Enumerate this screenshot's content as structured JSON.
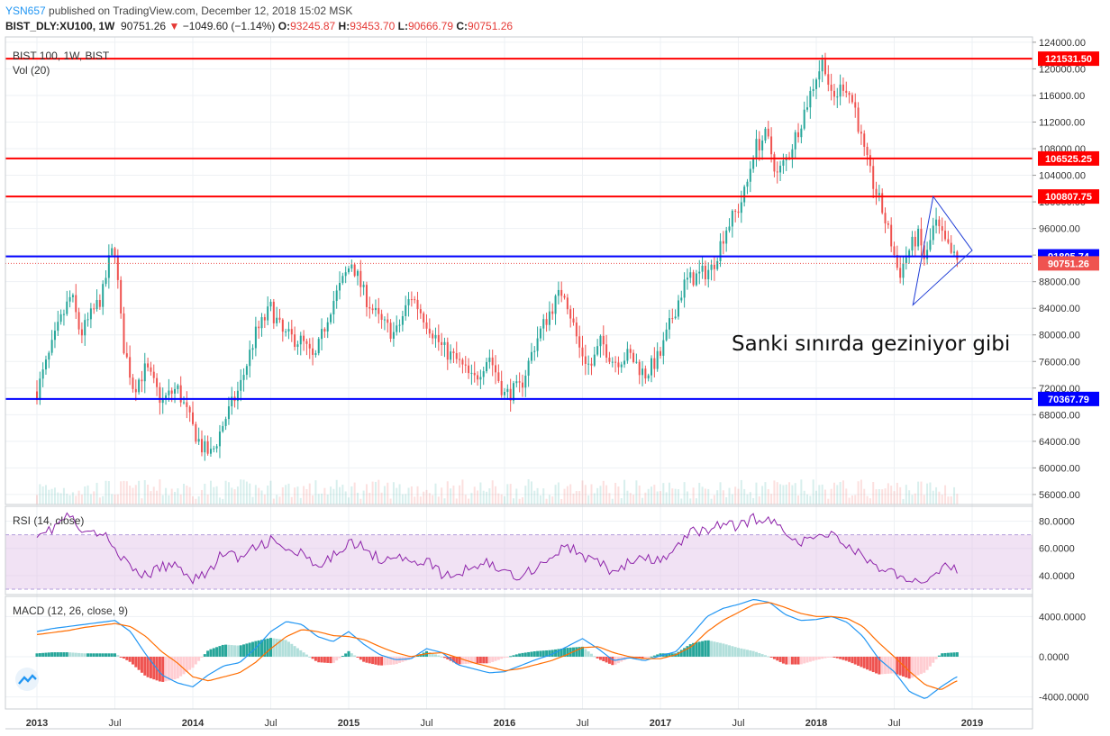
{
  "header": {
    "user": "YSN657",
    "published": "published on TradingView.com, December 12, 2018 15:02 MSK",
    "symbol": "BIST_DLY:XU100, 1W",
    "last": "90751.26",
    "arrow": "▼",
    "change": "−1049.60 (−1.14%)",
    "o_label": "O:",
    "o_val": "93245.87",
    "h_label": "H:",
    "h_val": "93453.70",
    "l_label": "L:",
    "l_val": "90666.79",
    "c_label": "C:",
    "c_val": "90751.26"
  },
  "panes": {
    "main_title": "BIST 100, 1W, BIST",
    "vol_title": "Vol (20)",
    "rsi_title": "RSI (14, close)",
    "macd_title": "MACD (12, 26, close, 9)"
  },
  "annotation": "Sanki sınırda geziniyor gibi",
  "chart_data": [
    {
      "type": "candlestick",
      "title": "BIST 100, 1W, BIST",
      "x_ticks": [
        "2013",
        "Jul",
        "2014",
        "Jul",
        "2015",
        "Jul",
        "2016",
        "Jul",
        "2017",
        "Jul",
        "2018",
        "Jul",
        "2019"
      ],
      "y_ticks": [
        124000,
        120000,
        116000,
        112000,
        108000,
        104000,
        100000,
        96000,
        92000,
        88000,
        84000,
        80000,
        76000,
        72000,
        68000,
        64000,
        60000,
        56000
      ],
      "ylim": [
        54500,
        124800
      ],
      "price_path": [
        [
          2013.0,
          71500
        ],
        [
          2013.08,
          77000
        ],
        [
          2013.15,
          82000
        ],
        [
          2013.22,
          86000
        ],
        [
          2013.28,
          80000
        ],
        [
          2013.35,
          83000
        ],
        [
          2013.42,
          86000
        ],
        [
          2013.47,
          92000
        ],
        [
          2013.5,
          93000
        ],
        [
          2013.55,
          79000
        ],
        [
          2013.62,
          72000
        ],
        [
          2013.7,
          75000
        ],
        [
          2013.8,
          70000
        ],
        [
          2013.9,
          72000
        ],
        [
          2014.0,
          66000
        ],
        [
          2014.06,
          63000
        ],
        [
          2014.12,
          62000
        ],
        [
          2014.2,
          67000
        ],
        [
          2014.3,
          72000
        ],
        [
          2014.4,
          80000
        ],
        [
          2014.5,
          84000
        ],
        [
          2014.58,
          80000
        ],
        [
          2014.7,
          79000
        ],
        [
          2014.78,
          76000
        ],
        [
          2014.88,
          84000
        ],
        [
          2014.96,
          88000
        ],
        [
          2015.02,
          91000
        ],
        [
          2015.1,
          86000
        ],
        [
          2015.2,
          82000
        ],
        [
          2015.3,
          80000
        ],
        [
          2015.4,
          86000
        ],
        [
          2015.5,
          82000
        ],
        [
          2015.6,
          78000
        ],
        [
          2015.7,
          76000
        ],
        [
          2015.8,
          73000
        ],
        [
          2015.9,
          77000
        ],
        [
          2016.0,
          71000
        ],
        [
          2016.1,
          72000
        ],
        [
          2016.2,
          79000
        ],
        [
          2016.3,
          84000
        ],
        [
          2016.38,
          87000
        ],
        [
          2016.48,
          78000
        ],
        [
          2016.55,
          75000
        ],
        [
          2016.62,
          79000
        ],
        [
          2016.7,
          76000
        ],
        [
          2016.8,
          77000
        ],
        [
          2016.9,
          74000
        ],
        [
          2017.0,
          77000
        ],
        [
          2017.08,
          83000
        ],
        [
          2017.16,
          88000
        ],
        [
          2017.25,
          89000
        ],
        [
          2017.33,
          90000
        ],
        [
          2017.42,
          96000
        ],
        [
          2017.5,
          99000
        ],
        [
          2017.55,
          102000
        ],
        [
          2017.6,
          108000
        ],
        [
          2017.68,
          110000
        ],
        [
          2017.75,
          104000
        ],
        [
          2017.82,
          107000
        ],
        [
          2017.9,
          112000
        ],
        [
          2018.0,
          119000
        ],
        [
          2018.05,
          121500
        ],
        [
          2018.1,
          115000
        ],
        [
          2018.18,
          118000
        ],
        [
          2018.25,
          114000
        ],
        [
          2018.3,
          108000
        ],
        [
          2018.36,
          103000
        ],
        [
          2018.42,
          99000
        ],
        [
          2018.48,
          94000
        ],
        [
          2018.53,
          89000
        ],
        [
          2018.58,
          92000
        ],
        [
          2018.65,
          95000
        ],
        [
          2018.7,
          91000
        ],
        [
          2018.76,
          97000
        ],
        [
          2018.82,
          94000
        ],
        [
          2018.87,
          92000
        ],
        [
          2018.91,
          90751
        ]
      ],
      "horizontal_levels": [
        {
          "value": 121531.5,
          "label": "121531.50",
          "color": "#ff0000"
        },
        {
          "value": 106525.25,
          "label": "106525.25",
          "color": "#ff0000"
        },
        {
          "value": 100807.75,
          "label": "100807.75",
          "color": "#ff0000"
        },
        {
          "value": 91805.74,
          "label": "91805.74",
          "color": "#0000ff"
        },
        {
          "value": 90751.26,
          "label": "90751.26",
          "color": "#ef5350"
        },
        {
          "value": 70367.79,
          "label": "70367.79",
          "color": "#0000ff"
        }
      ],
      "triangle": [
        [
          2018.75,
          100807
        ],
        [
          2019.0,
          92700
        ],
        [
          2018.62,
          84500
        ]
      ],
      "colors": {
        "up": "#26a69a",
        "down": "#ef5350"
      }
    },
    {
      "type": "line",
      "title": "RSI (14, close)",
      "y_ticks": [
        80,
        60,
        40
      ],
      "ylim": [
        26,
        91
      ],
      "band": [
        30,
        70
      ],
      "x": [
        2013.0,
        2013.1,
        2013.2,
        2013.3,
        2013.4,
        2013.5,
        2013.6,
        2013.7,
        2013.8,
        2013.9,
        2014.0,
        2014.1,
        2014.2,
        2014.3,
        2014.4,
        2014.5,
        2014.6,
        2014.7,
        2014.8,
        2014.9,
        2015.0,
        2015.1,
        2015.2,
        2015.3,
        2015.4,
        2015.5,
        2015.6,
        2015.7,
        2015.8,
        2015.9,
        2016.0,
        2016.1,
        2016.2,
        2016.3,
        2016.4,
        2016.5,
        2016.6,
        2016.7,
        2016.8,
        2016.9,
        2017.0,
        2017.1,
        2017.2,
        2017.3,
        2017.4,
        2017.5,
        2017.6,
        2017.7,
        2017.8,
        2017.9,
        2018.0,
        2018.1,
        2018.2,
        2018.3,
        2018.4,
        2018.5,
        2018.6,
        2018.7,
        2018.8,
        2018.9
      ],
      "values": [
        72,
        74,
        85,
        70,
        72,
        62,
        44,
        40,
        46,
        48,
        38,
        42,
        58,
        52,
        60,
        66,
        58,
        56,
        44,
        54,
        66,
        60,
        52,
        56,
        48,
        52,
        40,
        40,
        48,
        50,
        42,
        40,
        46,
        54,
        62,
        54,
        50,
        42,
        50,
        52,
        50,
        60,
        72,
        74,
        78,
        76,
        82,
        80,
        74,
        64,
        68,
        72,
        62,
        54,
        46,
        42,
        32,
        38,
        46,
        44
      ],
      "series_color": "#8e24aa"
    },
    {
      "type": "line+bar",
      "title": "MACD (12, 26, close, 9)",
      "y_ticks": [
        4000,
        0,
        -4000
      ],
      "ylim": [
        -5200,
        6000
      ],
      "x": [
        2013.0,
        2013.1,
        2013.2,
        2013.3,
        2013.4,
        2013.5,
        2013.6,
        2013.7,
        2013.8,
        2013.9,
        2014.0,
        2014.1,
        2014.2,
        2014.3,
        2014.4,
        2014.5,
        2014.6,
        2014.7,
        2014.8,
        2014.9,
        2015.0,
        2015.1,
        2015.2,
        2015.3,
        2015.4,
        2015.5,
        2015.6,
        2015.7,
        2015.8,
        2015.9,
        2016.0,
        2016.1,
        2016.2,
        2016.3,
        2016.4,
        2016.5,
        2016.6,
        2016.7,
        2016.8,
        2016.9,
        2017.0,
        2017.1,
        2017.2,
        2017.3,
        2017.4,
        2017.5,
        2017.6,
        2017.7,
        2017.8,
        2017.9,
        2018.0,
        2018.1,
        2018.2,
        2018.3,
        2018.4,
        2018.5,
        2018.6,
        2018.7,
        2018.8,
        2018.9
      ],
      "series": [
        {
          "name": "MACD",
          "color": "#2196f3",
          "values": [
            2500,
            2800,
            3000,
            3200,
            3400,
            3600,
            2500,
            200,
            -1800,
            -2600,
            -3000,
            -1800,
            -900,
            -600,
            800,
            2500,
            3500,
            3200,
            2000,
            1500,
            2500,
            1200,
            200,
            -300,
            -200,
            800,
            400,
            -800,
            -1200,
            -1600,
            -1500,
            -900,
            -300,
            200,
            1000,
            1800,
            800,
            -400,
            -100,
            -400,
            100,
            500,
            2200,
            4000,
            4800,
            5200,
            5700,
            5400,
            4200,
            3600,
            3700,
            4000,
            3400,
            2000,
            -200,
            -1500,
            -3500,
            -4200,
            -3000,
            -2000
          ]
        },
        {
          "name": "Signal",
          "color": "#ff6d00",
          "values": [
            2200,
            2400,
            2600,
            2900,
            3100,
            3300,
            3000,
            2000,
            500,
            -600,
            -2000,
            -2400,
            -2000,
            -1600,
            -600,
            800,
            2000,
            2700,
            2500,
            2100,
            2000,
            1700,
            1000,
            400,
            0,
            300,
            400,
            -100,
            -600,
            -1000,
            -1400,
            -1200,
            -800,
            -400,
            200,
            900,
            1000,
            400,
            0,
            -200,
            -200,
            200,
            1000,
            2500,
            3600,
            4400,
            5200,
            5400,
            4900,
            4300,
            4000,
            4000,
            3800,
            3000,
            1400,
            0,
            -1500,
            -2800,
            -3300,
            -2400
          ]
        }
      ],
      "histogram_colors": {
        "up_strong": "#26a69a",
        "up_weak": "#b2dfdb",
        "down_strong": "#ef5350",
        "down_weak": "#ffcdd2"
      }
    }
  ]
}
